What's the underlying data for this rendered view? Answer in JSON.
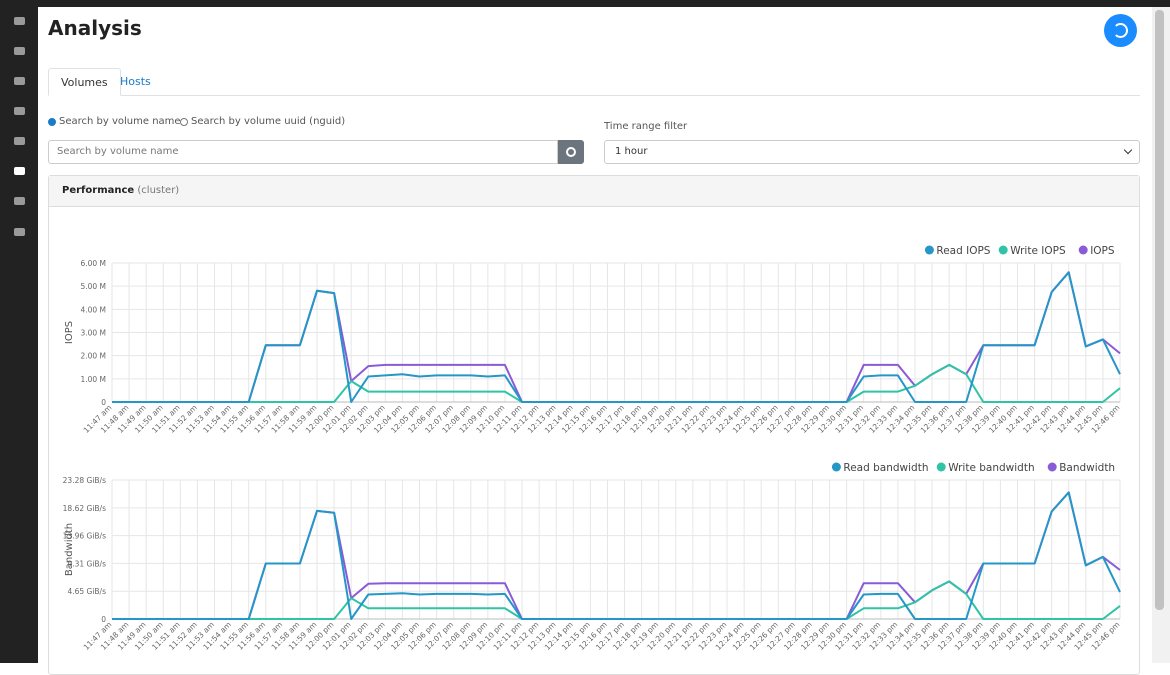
{
  "page": {
    "title": "Analysis",
    "tabs": [
      "Volumes",
      "Hosts"
    ],
    "search_options": [
      "Search by volume name",
      "Search by volume uuid (nguid)"
    ],
    "search_placeholder": "Search by volume name",
    "time_range_label": "Time range filter",
    "time_range_value": "1 hour",
    "panel_title": "Performance",
    "panel_subtitle": "(cluster)"
  },
  "chart_data": [
    {
      "type": "line",
      "y_label": "IOPS",
      "legend": "top-right",
      "grid": true,
      "categories": [
        "11:47 am",
        "11:48 am",
        "11:49 am",
        "11:50 am",
        "11:51 am",
        "11:52 am",
        "11:53 am",
        "11:54 am",
        "11:55 am",
        "11:56 am",
        "11:57 am",
        "11:58 am",
        "11:59 am",
        "12:00 pm",
        "12:01 pm",
        "12:02 pm",
        "12:03 pm",
        "12:04 pm",
        "12:05 pm",
        "12:06 pm",
        "12:07 pm",
        "12:08 pm",
        "12:09 pm",
        "12:10 pm",
        "12:11 pm",
        "12:12 pm",
        "12:13 pm",
        "12:14 pm",
        "12:15 pm",
        "12:16 pm",
        "12:17 pm",
        "12:18 pm",
        "12:19 pm",
        "12:20 pm",
        "12:21 pm",
        "12:22 pm",
        "12:23 pm",
        "12:24 pm",
        "12:25 pm",
        "12:26 pm",
        "12:27 pm",
        "12:28 pm",
        "12:29 pm",
        "12:30 pm",
        "12:31 pm",
        "12:32 pm",
        "12:33 pm",
        "12:34 pm",
        "12:35 pm",
        "12:36 pm",
        "12:37 pm",
        "12:38 pm",
        "12:39 pm",
        "12:40 pm",
        "12:41 pm",
        "12:42 pm",
        "12:43 pm",
        "12:44 pm",
        "12:45 pm",
        "12:46 pm"
      ],
      "ylim": [
        0,
        6000000
      ],
      "yticks": [
        0,
        {
          "value": 1000000,
          "label": "1.00 M"
        },
        {
          "value": 2000000,
          "label": "2.00 M"
        },
        {
          "value": 3000000,
          "label": "3.00 M"
        },
        {
          "value": 4000000,
          "label": "4.00 M"
        },
        {
          "value": 5000000,
          "label": "5.00 M"
        },
        {
          "value": 6000000,
          "label": "6.00 M"
        }
      ],
      "series": [
        {
          "name": "Read IOPS",
          "color": "#2596c8",
          "values": [
            0,
            0,
            0,
            0,
            0,
            0,
            0,
            0,
            0,
            2450000,
            2450000,
            2450000,
            4800000,
            4700000,
            0,
            1100000,
            1150000,
            1200000,
            1100000,
            1150000,
            1150000,
            1150000,
            1100000,
            1150000,
            0,
            0,
            0,
            0,
            0,
            0,
            0,
            0,
            0,
            0,
            0,
            0,
            0,
            0,
            0,
            0,
            0,
            0,
            0,
            0,
            1100000,
            1150000,
            1150000,
            0,
            0,
            0,
            0,
            2450000,
            2450000,
            2450000,
            2450000,
            4750000,
            5600000,
            2400000,
            2700000,
            1200000
          ]
        },
        {
          "name": "Write IOPS",
          "color": "#2ec4a5",
          "values": [
            0,
            0,
            0,
            0,
            0,
            0,
            0,
            0,
            0,
            0,
            0,
            0,
            0,
            0,
            900000,
            450000,
            450000,
            450000,
            450000,
            450000,
            450000,
            450000,
            450000,
            450000,
            0,
            0,
            0,
            0,
            0,
            0,
            0,
            0,
            0,
            0,
            0,
            0,
            0,
            0,
            0,
            0,
            0,
            0,
            0,
            0,
            450000,
            450000,
            450000,
            700000,
            1200000,
            1600000,
            1200000,
            0,
            0,
            0,
            0,
            0,
            0,
            0,
            0,
            600000
          ]
        },
        {
          "name": "IOPS",
          "color": "#8a5bd6",
          "values": [
            0,
            0,
            0,
            0,
            0,
            0,
            0,
            0,
            0,
            2450000,
            2450000,
            2450000,
            4800000,
            4700000,
            900000,
            1550000,
            1600000,
            1600000,
            1600000,
            1600000,
            1600000,
            1600000,
            1600000,
            1600000,
            0,
            0,
            0,
            0,
            0,
            0,
            0,
            0,
            0,
            0,
            0,
            0,
            0,
            0,
            0,
            0,
            0,
            0,
            0,
            0,
            1600000,
            1600000,
            1600000,
            700000,
            1200000,
            1600000,
            1200000,
            2450000,
            2450000,
            2450000,
            2450000,
            4750000,
            5600000,
            2400000,
            2700000,
            2100000
          ]
        }
      ]
    },
    {
      "type": "line",
      "y_label": "Bandwidth",
      "legend": "top-right",
      "grid": true,
      "categories": [
        "11:47 am",
        "11:48 am",
        "11:49 am",
        "11:50 am",
        "11:51 am",
        "11:52 am",
        "11:53 am",
        "11:54 am",
        "11:55 am",
        "11:56 am",
        "11:57 am",
        "11:58 am",
        "11:59 am",
        "12:00 pm",
        "12:01 pm",
        "12:02 pm",
        "12:03 pm",
        "12:04 pm",
        "12:05 pm",
        "12:06 pm",
        "12:07 pm",
        "12:08 pm",
        "12:09 pm",
        "12:10 pm",
        "12:11 pm",
        "12:12 pm",
        "12:13 pm",
        "12:14 pm",
        "12:15 pm",
        "12:16 pm",
        "12:17 pm",
        "12:18 pm",
        "12:19 pm",
        "12:20 pm",
        "12:21 pm",
        "12:22 pm",
        "12:23 pm",
        "12:24 pm",
        "12:25 pm",
        "12:26 pm",
        "12:27 pm",
        "12:28 pm",
        "12:29 pm",
        "12:30 pm",
        "12:31 pm",
        "12:32 pm",
        "12:33 pm",
        "12:34 pm",
        "12:35 pm",
        "12:36 pm",
        "12:37 pm",
        "12:38 pm",
        "12:39 pm",
        "12:40 pm",
        "12:41 pm",
        "12:42 pm",
        "12:43 pm",
        "12:44 pm",
        "12:45 pm",
        "12:46 pm"
      ],
      "ylim": [
        0,
        23.28
      ],
      "yticks": [
        0,
        {
          "value": 4.65,
          "label": "4.65 GiB/s"
        },
        {
          "value": 9.31,
          "label": "9.31 GiB/s"
        },
        {
          "value": 13.96,
          "label": "13.96 GiB/s"
        },
        {
          "value": 18.62,
          "label": "18.62 GiB/s"
        },
        {
          "value": 23.28,
          "label": "23.28 GiB/s"
        }
      ],
      "series": [
        {
          "name": "Read bandwidth",
          "color": "#2596c8",
          "values": [
            0,
            0,
            0,
            0,
            0,
            0,
            0,
            0,
            0,
            9.3,
            9.3,
            9.3,
            18.1,
            17.8,
            0,
            4.1,
            4.2,
            4.3,
            4.1,
            4.2,
            4.2,
            4.2,
            4.1,
            4.2,
            0,
            0,
            0,
            0,
            0,
            0,
            0,
            0,
            0,
            0,
            0,
            0,
            0,
            0,
            0,
            0,
            0,
            0,
            0,
            0,
            4.1,
            4.2,
            4.2,
            0,
            0,
            0,
            0,
            9.3,
            9.3,
            9.3,
            9.3,
            18,
            21.2,
            9.0,
            10.4,
            4.5
          ]
        },
        {
          "name": "Write bandwidth",
          "color": "#2ec4a5",
          "values": [
            0,
            0,
            0,
            0,
            0,
            0,
            0,
            0,
            0,
            0,
            0,
            0,
            0,
            0,
            3.5,
            1.8,
            1.8,
            1.8,
            1.8,
            1.8,
            1.8,
            1.8,
            1.8,
            1.8,
            0,
            0,
            0,
            0,
            0,
            0,
            0,
            0,
            0,
            0,
            0,
            0,
            0,
            0,
            0,
            0,
            0,
            0,
            0,
            0,
            1.8,
            1.8,
            1.8,
            2.8,
            4.8,
            6.3,
            4.2,
            0,
            0,
            0,
            0,
            0,
            0,
            0,
            0,
            2.2
          ]
        },
        {
          "name": "Bandwidth",
          "color": "#8a5bd6",
          "values": [
            0,
            0,
            0,
            0,
            0,
            0,
            0,
            0,
            0,
            9.3,
            9.3,
            9.3,
            18.1,
            17.8,
            3.5,
            5.9,
            6.0,
            6.0,
            6.0,
            6.0,
            6.0,
            6.0,
            6.0,
            6.0,
            0,
            0,
            0,
            0,
            0,
            0,
            0,
            0,
            0,
            0,
            0,
            0,
            0,
            0,
            0,
            0,
            0,
            0,
            0,
            0,
            6.0,
            6.0,
            6.0,
            2.8,
            4.8,
            6.3,
            4.2,
            9.3,
            9.3,
            9.3,
            9.3,
            18,
            21.2,
            9.0,
            10.4,
            8.2
          ]
        }
      ]
    }
  ]
}
